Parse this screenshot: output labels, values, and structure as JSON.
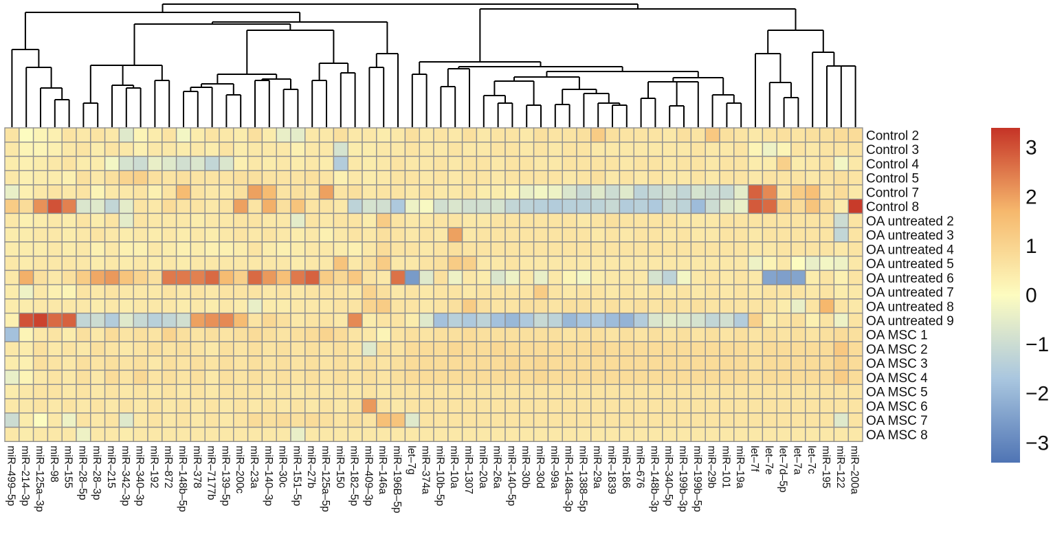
{
  "chart_data": {
    "type": "heatmap",
    "title": "",
    "columns": [
      "miR-499-5p",
      "miR-214-3p",
      "miR-125a-3p",
      "miR-98",
      "miR-155",
      "miR-28-5p",
      "miR-28-3p",
      "miR-215",
      "miR-342-3p",
      "miR-340-3p",
      "miR-192",
      "miR-872",
      "miR-148b-5p",
      "miR-378",
      "miR-7177b",
      "miR-139-5p",
      "miR-200c",
      "miR-23a",
      "miR-140-3p",
      "miR-30c",
      "miR-151-5p",
      "miR-27b",
      "miR-125a-5p",
      "miR-150",
      "miR-182-5p",
      "miR-409-3p",
      "miR-146a",
      "miR-196B-5p",
      "let-7g",
      "miR-374a",
      "miR-10b-5p",
      "miR-10a",
      "miR-1307",
      "miR-20a",
      "miR-26a",
      "miR-140-5p",
      "miR-30b",
      "miR-30d",
      "miR-99a",
      "miR-148a-3p",
      "miR-1388-5p",
      "miR-29a",
      "miR-1839",
      "miR-186",
      "miR-676",
      "miR-148b-3p",
      "miR-340-5p",
      "miR-199b-3p",
      "miR-199b-5p",
      "miR-29b",
      "miR-101",
      "miR-19a",
      "let-7f",
      "let-7e",
      "let-7d-5p",
      "let-7a",
      "let-7c",
      "miR-195",
      "miR-122",
      "miR-200a"
    ],
    "rows": [
      "Control 2",
      "Control 3",
      "Control 4",
      "Control 5",
      "Control 7",
      "Control 8",
      "OA untreated 2",
      "OA untreated 3",
      "OA untreated 4",
      "OA untreated 5",
      "OA untreated 6",
      "OA untreated 7",
      "OA untreated 8",
      "OA untreated 9",
      "OA MSC 1",
      "OA MSC 2",
      "OA MSC 3",
      "OA MSC 4",
      "OA MSC 5",
      "OA MSC 6",
      "OA MSC 7",
      "OA MSC 8"
    ],
    "values": [
      [
        0.6,
        0.0,
        0.2,
        0.3,
        0.6,
        0.5,
        0.6,
        0.5,
        -0.6,
        0.2,
        0.4,
        0.6,
        -0.2,
        0.4,
        0.6,
        0.5,
        0.4,
        0.7,
        0.4,
        -0.4,
        -0.5,
        0.5,
        0.5,
        0.7,
        0.5,
        0.5,
        0.4,
        0.5,
        0.7,
        0.5,
        0.6,
        0.5,
        0.7,
        0.5,
        0.6,
        0.6,
        0.5,
        0.7,
        0.6,
        0.6,
        0.7,
        1.2,
        0.7,
        0.6,
        0.6,
        0.6,
        0.5,
        0.7,
        0.6,
        1.3,
        0.7,
        0.6,
        0.5,
        0.6,
        0.7,
        0.6,
        0.7,
        0.7,
        0.8,
        0.8
      ],
      [
        0.5,
        0.2,
        0.2,
        0.3,
        0.5,
        0.6,
        0.4,
        0.6,
        0.5,
        0.3,
        0.5,
        0.5,
        0.4,
        0.5,
        0.4,
        0.6,
        0.4,
        0.5,
        0.5,
        0.5,
        0.3,
        0.5,
        0.5,
        -0.8,
        0.4,
        0.4,
        0.5,
        0.5,
        0.6,
        0.5,
        0.5,
        0.6,
        0.5,
        0.5,
        0.6,
        0.6,
        0.5,
        0.6,
        0.5,
        0.6,
        0.6,
        0.5,
        0.5,
        0.5,
        0.5,
        0.5,
        0.5,
        0.5,
        0.6,
        0.5,
        0.5,
        0.6,
        0.2,
        -0.3,
        0.2,
        0.6,
        0.5,
        0.6,
        0.6,
        0.6
      ],
      [
        0.4,
        0.3,
        0.4,
        0.5,
        0.6,
        0.4,
        0.4,
        -0.2,
        -0.8,
        -1.0,
        -0.4,
        -0.6,
        -0.9,
        -0.7,
        -1.2,
        -0.7,
        0.3,
        0.5,
        0.4,
        0.5,
        0.4,
        0.5,
        0.4,
        -1.5,
        0.5,
        0.4,
        0.5,
        0.6,
        0.5,
        0.5,
        0.6,
        0.5,
        0.6,
        0.6,
        0.5,
        0.6,
        0.6,
        0.5,
        0.5,
        0.6,
        0.6,
        0.6,
        0.6,
        0.5,
        0.6,
        0.6,
        0.5,
        0.6,
        0.6,
        0.5,
        0.6,
        0.6,
        0.4,
        0.4,
        1.1,
        0.4,
        0.5,
        0.6,
        -0.2,
        0.5
      ],
      [
        0.5,
        0.3,
        0.4,
        0.4,
        0.3,
        0.7,
        0.5,
        0.7,
        1.0,
        1.1,
        0.7,
        0.6,
        0.7,
        0.6,
        0.6,
        0.6,
        0.7,
        0.7,
        0.6,
        0.6,
        0.6,
        0.7,
        0.6,
        0.3,
        0.5,
        0.4,
        0.5,
        0.6,
        0.6,
        0.5,
        0.6,
        0.5,
        0.6,
        0.6,
        0.5,
        0.6,
        0.6,
        0.6,
        0.6,
        0.5,
        0.6,
        0.7,
        0.5,
        0.6,
        0.5,
        0.6,
        0.5,
        0.5,
        0.6,
        0.5,
        0.6,
        0.6,
        0.5,
        0.6,
        0.6,
        0.6,
        0.5,
        0.6,
        0.7,
        0.6
      ],
      [
        -0.4,
        0.3,
        0.5,
        0.6,
        0.5,
        0.6,
        0.2,
        0.5,
        0.5,
        0.6,
        0.3,
        0.6,
        1.6,
        0.6,
        0.5,
        0.5,
        0.7,
        2.0,
        1.6,
        0.6,
        0.7,
        0.6,
        2.0,
        0.6,
        0.7,
        0.5,
        0.6,
        0.6,
        0.5,
        0.6,
        0.5,
        0.5,
        0.6,
        0.4,
        0.4,
        0.3,
        -0.4,
        -0.2,
        -0.3,
        -0.7,
        -1.1,
        -0.6,
        -1.0,
        -0.6,
        -1.3,
        -1.1,
        -0.9,
        -1.2,
        -0.8,
        -1.0,
        -1.1,
        -0.5,
        2.8,
        2.3,
        0.6,
        1.2,
        1.5,
        0.6,
        0.8,
        0.5
      ],
      [
        1.2,
        0.8,
        2.2,
        3.0,
        2.4,
        -0.7,
        -0.6,
        -1.2,
        -0.5,
        0.6,
        0.5,
        0.8,
        0.6,
        0.6,
        0.5,
        0.6,
        2.0,
        0.6,
        1.8,
        0.7,
        1.4,
        0.6,
        0.6,
        0.5,
        -1.3,
        -0.8,
        -0.9,
        -1.6,
        -0.3,
        -0.1,
        -0.9,
        -0.7,
        -0.9,
        -0.9,
        -0.8,
        -1.2,
        -1.3,
        -1.4,
        -1.5,
        -1.4,
        -1.4,
        -1.3,
        -1.1,
        -1.5,
        -1.4,
        -1.6,
        -1.1,
        -1.3,
        -1.9,
        -1.0,
        -0.6,
        -0.4,
        2.9,
        2.7,
        1.1,
        0.8,
        1.4,
        0.8,
        0.4,
        3.3
      ],
      [
        0.5,
        0.3,
        0.4,
        0.5,
        0.4,
        0.6,
        0.4,
        0.6,
        -0.5,
        0.6,
        0.5,
        0.5,
        0.5,
        0.4,
        0.5,
        0.5,
        0.6,
        0.6,
        0.5,
        0.5,
        -0.5,
        0.6,
        0.5,
        0.6,
        0.6,
        0.4,
        1.2,
        0.6,
        0.5,
        0.5,
        0.6,
        0.6,
        0.5,
        0.5,
        0.6,
        0.6,
        0.6,
        0.6,
        0.6,
        0.6,
        0.5,
        0.6,
        0.7,
        0.6,
        0.6,
        0.6,
        0.6,
        0.5,
        0.5,
        0.5,
        0.6,
        0.6,
        0.6,
        0.6,
        0.6,
        0.6,
        0.6,
        0.6,
        -1.0,
        0.6
      ],
      [
        0.4,
        0.4,
        0.5,
        0.5,
        0.4,
        0.5,
        0.6,
        0.5,
        0.4,
        0.5,
        0.4,
        0.5,
        0.4,
        0.5,
        0.4,
        0.5,
        0.6,
        0.5,
        0.6,
        0.5,
        0.4,
        0.5,
        0.3,
        0.5,
        0.6,
        0.5,
        0.7,
        0.6,
        0.5,
        0.6,
        0.5,
        2.0,
        0.5,
        0.6,
        0.6,
        0.6,
        0.6,
        0.6,
        0.6,
        0.6,
        0.6,
        0.5,
        0.6,
        0.5,
        0.6,
        0.6,
        0.5,
        0.6,
        0.5,
        0.5,
        0.6,
        0.6,
        0.5,
        0.6,
        0.6,
        0.6,
        0.6,
        0.6,
        -1.2,
        0.6
      ],
      [
        0.4,
        0.4,
        0.4,
        0.5,
        0.4,
        0.5,
        0.3,
        0.5,
        0.3,
        0.3,
        0.5,
        0.4,
        0.3,
        0.4,
        0.3,
        0.3,
        0.4,
        0.6,
        0.4,
        0.3,
        0.4,
        0.5,
        0.5,
        0.4,
        0.3,
        0.5,
        0.8,
        0.6,
        0.6,
        0.5,
        0.6,
        0.7,
        0.6,
        0.6,
        0.6,
        0.6,
        0.6,
        0.6,
        0.6,
        0.6,
        0.6,
        0.6,
        0.6,
        0.6,
        0.6,
        0.6,
        0.6,
        0.6,
        0.6,
        0.6,
        0.6,
        0.6,
        0.5,
        0.5,
        0.6,
        0.6,
        0.6,
        0.6,
        0.5,
        0.6
      ],
      [
        0.5,
        0.4,
        0.5,
        0.5,
        0.5,
        0.5,
        0.4,
        0.5,
        0.4,
        0.5,
        0.4,
        0.5,
        0.4,
        0.5,
        0.5,
        0.5,
        0.5,
        0.5,
        0.5,
        0.5,
        0.4,
        0.5,
        0.5,
        1.4,
        0.5,
        0.7,
        1.2,
        0.5,
        0.5,
        0.6,
        0.7,
        1.2,
        1.1,
        0.5,
        0.5,
        0.6,
        0.5,
        0.5,
        0.5,
        0.5,
        0.5,
        0.5,
        0.5,
        0.5,
        0.5,
        0.5,
        0.5,
        0.5,
        0.5,
        0.5,
        0.5,
        0.5,
        -0.3,
        0.2,
        0.5,
        0.0,
        -0.4,
        -0.2,
        -0.3,
        0.5
      ],
      [
        0.5,
        1.8,
        0.7,
        0.5,
        0.7,
        1.2,
        1.9,
        2.1,
        1.4,
        1.0,
        0.7,
        2.5,
        2.5,
        2.4,
        2.7,
        1.6,
        1.1,
        2.7,
        2.1,
        1.5,
        2.5,
        2.8,
        1.2,
        0.9,
        1.3,
        0.6,
        0.5,
        2.6,
        -2.6,
        -0.6,
        0.7,
        -0.3,
        0.5,
        0.4,
        -0.7,
        -0.3,
        0.5,
        -0.4,
        0.5,
        0.2,
        -0.2,
        0.4,
        0.5,
        0.5,
        0.5,
        -0.8,
        -1.3,
        -0.2,
        0.5,
        0.6,
        0.5,
        0.6,
        0.5,
        -2.4,
        -2.5,
        -2.4,
        0.4,
        0.6,
        0.3,
        0.6
      ],
      [
        0.4,
        -0.3,
        0.5,
        0.3,
        0.2,
        0.6,
        0.5,
        0.6,
        0.5,
        0.5,
        0.5,
        0.6,
        0.5,
        0.6,
        0.5,
        0.6,
        0.6,
        0.6,
        0.5,
        0.6,
        0.5,
        0.6,
        0.6,
        0.6,
        0.5,
        1.0,
        0.7,
        0.5,
        0.6,
        0.5,
        0.6,
        0.6,
        0.5,
        0.6,
        0.6,
        0.6,
        0.6,
        1.2,
        0.6,
        0.5,
        0.6,
        0.6,
        0.5,
        0.6,
        0.5,
        0.6,
        0.5,
        0.6,
        0.5,
        0.6,
        0.5,
        0.6,
        0.5,
        0.6,
        0.6,
        0.6,
        0.5,
        0.6,
        0.4,
        0.5
      ],
      [
        0.4,
        0.4,
        0.5,
        0.5,
        0.5,
        0.5,
        0.4,
        0.5,
        0.4,
        0.5,
        0.5,
        0.5,
        0.4,
        0.5,
        0.4,
        0.5,
        0.4,
        -0.4,
        0.4,
        0.4,
        0.5,
        0.5,
        0.5,
        0.6,
        0.6,
        1.0,
        1.2,
        0.6,
        0.6,
        0.5,
        0.6,
        0.7,
        1.2,
        0.7,
        0.6,
        0.6,
        0.7,
        0.7,
        0.6,
        0.7,
        0.7,
        0.6,
        0.7,
        0.6,
        0.7,
        0.6,
        0.7,
        0.6,
        0.7,
        0.6,
        0.6,
        0.6,
        0.6,
        0.6,
        0.4,
        -0.4,
        0.6,
        1.7,
        0.6,
        0.5
      ],
      [
        0.3,
        3.0,
        3.2,
        2.7,
        2.8,
        -1.2,
        -1.0,
        -1.5,
        -0.6,
        -1.1,
        -1.4,
        -1.2,
        -0.9,
        2.0,
        2.2,
        2.3,
        1.6,
        0.6,
        0.9,
        0.7,
        0.5,
        0.6,
        0.6,
        0.5,
        2.3,
        0.4,
        0.6,
        0.6,
        0.4,
        -0.6,
        -1.8,
        -1.4,
        -1.6,
        -1.3,
        -1.8,
        -2.0,
        -1.6,
        -1.1,
        -1.3,
        -2.0,
        -1.7,
        -1.6,
        -1.9,
        -2.1,
        -1.5,
        -0.7,
        -0.5,
        -0.6,
        -0.8,
        -1.2,
        -0.9,
        -1.5,
        1.1,
        0.4,
        0.6,
        0.7,
        0.3,
        0.6,
        -0.3,
        0.6
      ],
      [
        -1.8,
        0.2,
        0.5,
        0.6,
        0.4,
        0.7,
        0.5,
        0.8,
        0.6,
        0.7,
        0.6,
        1.0,
        0.7,
        0.6,
        0.7,
        0.6,
        0.7,
        0.8,
        0.7,
        0.6,
        0.7,
        0.8,
        1.0,
        0.8,
        0.6,
        0.5,
        0.2,
        0.6,
        0.7,
        0.6,
        0.7,
        0.7,
        0.8,
        0.7,
        0.7,
        0.7,
        0.7,
        0.7,
        0.7,
        0.6,
        0.7,
        0.7,
        0.6,
        0.7,
        0.6,
        0.7,
        0.6,
        0.7,
        0.6,
        0.7,
        0.6,
        0.7,
        0.6,
        0.7,
        0.6,
        0.7,
        0.6,
        0.7,
        0.8,
        0.7
      ],
      [
        0.5,
        0.4,
        0.7,
        0.5,
        0.6,
        0.5,
        0.7,
        0.6,
        0.5,
        0.6,
        0.7,
        0.6,
        0.7,
        0.6,
        0.5,
        0.7,
        0.6,
        0.7,
        0.6,
        0.7,
        0.6,
        0.7,
        0.6,
        0.7,
        0.6,
        -0.6,
        0.7,
        0.6,
        0.8,
        0.8,
        0.8,
        0.9,
        0.8,
        0.8,
        0.9,
        0.8,
        0.8,
        0.8,
        0.8,
        0.8,
        0.8,
        0.9,
        0.8,
        0.8,
        0.8,
        0.8,
        0.8,
        0.8,
        0.8,
        0.8,
        0.8,
        0.8,
        0.7,
        0.8,
        0.8,
        0.8,
        0.8,
        0.8,
        1.3,
        0.8
      ],
      [
        0.4,
        0.3,
        0.7,
        0.6,
        0.5,
        0.7,
        0.6,
        0.7,
        0.6,
        0.7,
        0.5,
        0.7,
        0.6,
        0.7,
        0.6,
        0.7,
        0.6,
        0.7,
        0.6,
        0.7,
        0.6,
        0.7,
        0.6,
        0.7,
        0.6,
        0.7,
        0.6,
        0.7,
        0.8,
        0.8,
        0.8,
        0.8,
        0.8,
        0.8,
        0.8,
        0.9,
        0.8,
        0.9,
        0.8,
        0.8,
        0.8,
        0.8,
        0.8,
        0.8,
        0.8,
        0.8,
        0.8,
        0.8,
        0.8,
        0.8,
        0.8,
        0.8,
        0.7,
        0.8,
        0.8,
        0.8,
        0.8,
        0.8,
        1.1,
        0.8
      ],
      [
        -0.4,
        0.2,
        0.5,
        0.6,
        0.5,
        0.7,
        0.5,
        0.8,
        0.6,
        0.9,
        0.6,
        0.7,
        0.6,
        0.7,
        0.5,
        0.7,
        0.6,
        0.7,
        0.6,
        0.7,
        0.6,
        0.7,
        0.6,
        0.7,
        0.6,
        0.7,
        0.6,
        0.7,
        0.8,
        0.8,
        0.8,
        0.8,
        0.8,
        0.8,
        0.8,
        0.8,
        0.8,
        0.9,
        0.8,
        0.8,
        0.8,
        0.8,
        0.8,
        0.8,
        0.8,
        0.8,
        0.8,
        0.8,
        0.8,
        0.8,
        0.8,
        0.8,
        0.7,
        0.8,
        0.8,
        0.8,
        0.8,
        0.8,
        1.2,
        0.8
      ],
      [
        0.4,
        0.5,
        0.6,
        0.6,
        0.5,
        0.6,
        0.5,
        0.6,
        0.5,
        0.6,
        0.5,
        0.6,
        0.5,
        0.6,
        0.5,
        0.6,
        0.6,
        0.6,
        0.5,
        0.6,
        0.5,
        0.6,
        0.5,
        0.6,
        0.5,
        0.6,
        0.5,
        0.6,
        0.6,
        0.6,
        0.6,
        0.6,
        0.6,
        0.6,
        0.6,
        0.6,
        0.6,
        0.6,
        0.6,
        0.6,
        0.6,
        0.6,
        0.6,
        0.6,
        0.6,
        0.6,
        0.6,
        0.6,
        0.6,
        0.6,
        0.6,
        0.6,
        0.6,
        0.6,
        0.6,
        0.6,
        0.6,
        0.6,
        0.6,
        0.6
      ],
      [
        0.5,
        0.5,
        0.6,
        0.5,
        0.6,
        0.5,
        0.6,
        0.5,
        0.6,
        0.5,
        0.6,
        0.5,
        0.6,
        0.5,
        0.6,
        0.5,
        0.6,
        0.5,
        0.6,
        0.5,
        0.6,
        0.5,
        0.6,
        0.5,
        0.6,
        2.1,
        0.6,
        0.5,
        0.6,
        0.6,
        0.6,
        0.6,
        0.6,
        0.6,
        0.6,
        0.6,
        0.6,
        0.6,
        0.6,
        0.6,
        0.6,
        0.6,
        0.6,
        0.6,
        0.6,
        0.6,
        0.6,
        0.6,
        0.6,
        0.6,
        0.6,
        0.6,
        0.6,
        0.6,
        0.6,
        0.6,
        0.6,
        0.6,
        0.6,
        0.6
      ],
      [
        -1.0,
        0.4,
        0.0,
        0.5,
        -0.3,
        0.6,
        0.5,
        0.6,
        -0.6,
        0.5,
        0.6,
        0.5,
        0.6,
        0.5,
        0.6,
        0.5,
        0.6,
        0.8,
        0.7,
        0.8,
        0.7,
        0.8,
        0.7,
        0.6,
        0.7,
        0.6,
        1.5,
        1.4,
        -0.6,
        0.6,
        0.6,
        0.6,
        0.6,
        0.6,
        0.6,
        0.6,
        0.6,
        0.6,
        0.6,
        0.6,
        0.6,
        0.6,
        0.6,
        0.6,
        0.6,
        0.6,
        0.6,
        0.6,
        0.6,
        0.6,
        0.6,
        0.6,
        0.6,
        0.6,
        0.6,
        0.6,
        0.6,
        0.6,
        -0.6,
        0.6
      ],
      [
        0.5,
        0.4,
        0.5,
        0.5,
        0.5,
        -0.3,
        0.5,
        0.5,
        0.4,
        0.5,
        0.5,
        0.5,
        0.5,
        0.5,
        0.5,
        0.5,
        0.5,
        0.5,
        0.5,
        0.5,
        -0.4,
        0.5,
        0.5,
        0.5,
        0.5,
        0.5,
        0.5,
        0.5,
        0.5,
        0.5,
        0.5,
        0.5,
        0.5,
        0.5,
        0.5,
        0.5,
        0.5,
        0.5,
        0.5,
        0.5,
        0.5,
        0.5,
        0.5,
        0.5,
        0.5,
        0.5,
        0.5,
        0.5,
        0.5,
        0.5,
        0.5,
        0.5,
        0.5,
        0.5,
        0.5,
        0.5,
        0.5,
        0.5,
        0.5,
        0.5
      ]
    ],
    "colorbar": {
      "min": -3.4,
      "max": 3.4,
      "ticks": [
        3,
        2,
        1,
        0,
        -1,
        -2,
        -3
      ],
      "tick_labels": [
        "3",
        "2",
        "1",
        "0",
        "−1",
        "−2",
        "−3"
      ]
    },
    "colors": {
      "low": "#4f74b4",
      "mid": "#fdfcc0",
      "high": "#c53326",
      "grid": "#8f8f8f",
      "tree": "#000000"
    }
  }
}
